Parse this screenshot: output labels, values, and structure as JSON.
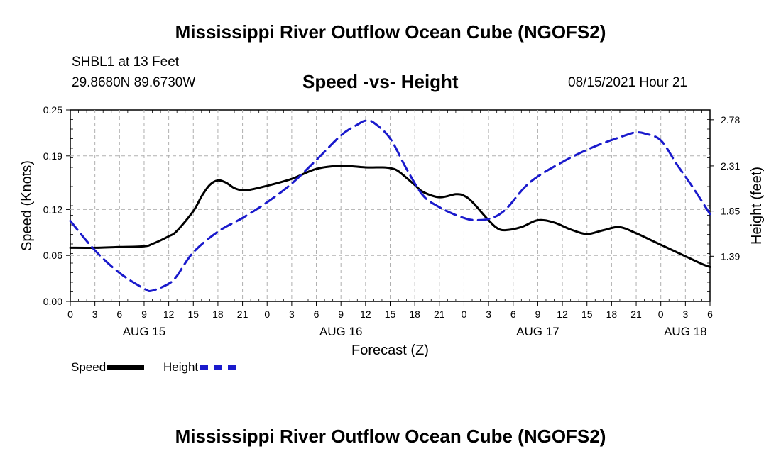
{
  "header": {
    "title_top": "Mississippi River Outflow Ocean Cube (NGOFS2)",
    "station": "SHBL1 at 13 Feet",
    "coords": "29.8680N  89.6730W",
    "subtitle": "Speed -vs- Height",
    "datetime": "08/15/2021 Hour 21"
  },
  "footer": {
    "title_bottom": "Mississippi River Outflow Ocean Cube (NGOFS2)"
  },
  "legend": {
    "speed_label": "Speed",
    "height_label": "Height",
    "speed_color": "#000000",
    "height_color": "#1a1acc"
  },
  "chart_data": {
    "type": "line",
    "title": "Speed -vs- Height",
    "xlabel": "Forecast (Z)",
    "ylabel": "Speed (Knots)",
    "y2label": "Height (feet)",
    "x_hours_range": [
      0,
      78
    ],
    "x_tick_labels": [
      "0",
      "3",
      "6",
      "9",
      "12",
      "15",
      "18",
      "21",
      "0",
      "3",
      "6",
      "9",
      "12",
      "15",
      "18",
      "21",
      "0",
      "3",
      "6",
      "9",
      "12",
      "15",
      "18",
      "21",
      "0",
      "3",
      "6"
    ],
    "date_labels": [
      {
        "text": "AUG 15",
        "hour": 9
      },
      {
        "text": "AUG 16",
        "hour": 33
      },
      {
        "text": "AUG 17",
        "hour": 57
      },
      {
        "text": "AUG 18",
        "hour": 75
      }
    ],
    "ylim": [
      0,
      0.25
    ],
    "y_ticks": [
      "0.00",
      "0.06",
      "0.12",
      "0.19",
      "0.25"
    ],
    "y2lim": [
      0.93,
      2.88
    ],
    "y2_ticks": [
      "1.39",
      "1.85",
      "2.31",
      "2.78"
    ],
    "grid": true,
    "legend_position": "bottom-left",
    "series": [
      {
        "name": "Speed",
        "axis": "left",
        "color": "#000000",
        "dash": "solid",
        "x": [
          0,
          3,
          6,
          9,
          10,
          12,
          13,
          15,
          16,
          17,
          18,
          19,
          20,
          21,
          22,
          24,
          27,
          30,
          33,
          36,
          38,
          39,
          40,
          42,
          43,
          45,
          47,
          48,
          49,
          51,
          52,
          53,
          55,
          57,
          59,
          61,
          63,
          65,
          67,
          69,
          71,
          73,
          75,
          77,
          78
        ],
        "y": [
          0.07,
          0.07,
          0.071,
          0.072,
          0.075,
          0.085,
          0.092,
          0.118,
          0.137,
          0.152,
          0.158,
          0.155,
          0.148,
          0.145,
          0.146,
          0.151,
          0.16,
          0.173,
          0.177,
          0.175,
          0.175,
          0.174,
          0.17,
          0.152,
          0.143,
          0.136,
          0.14,
          0.138,
          0.13,
          0.106,
          0.096,
          0.093,
          0.097,
          0.106,
          0.103,
          0.094,
          0.088,
          0.093,
          0.097,
          0.089,
          0.079,
          0.069,
          0.059,
          0.049,
          0.045
        ]
      },
      {
        "name": "Height",
        "axis": "right",
        "color": "#1a1acc",
        "dash": "dashed",
        "x": [
          0,
          3,
          6,
          9,
          10,
          12,
          13,
          15,
          18,
          21,
          24,
          27,
          30,
          33,
          35,
          36,
          37,
          39,
          41,
          43,
          45,
          47,
          48,
          49,
          51,
          53,
          56,
          60,
          64,
          68,
          69,
          70,
          72,
          74,
          76,
          78
        ],
        "y": [
          1.75,
          1.45,
          1.22,
          1.06,
          1.04,
          1.11,
          1.19,
          1.43,
          1.64,
          1.78,
          1.94,
          2.13,
          2.37,
          2.62,
          2.73,
          2.77,
          2.75,
          2.59,
          2.28,
          2.01,
          1.89,
          1.81,
          1.78,
          1.76,
          1.77,
          1.86,
          2.14,
          2.35,
          2.51,
          2.63,
          2.65,
          2.64,
          2.57,
          2.32,
          2.08,
          1.82
        ]
      }
    ]
  }
}
